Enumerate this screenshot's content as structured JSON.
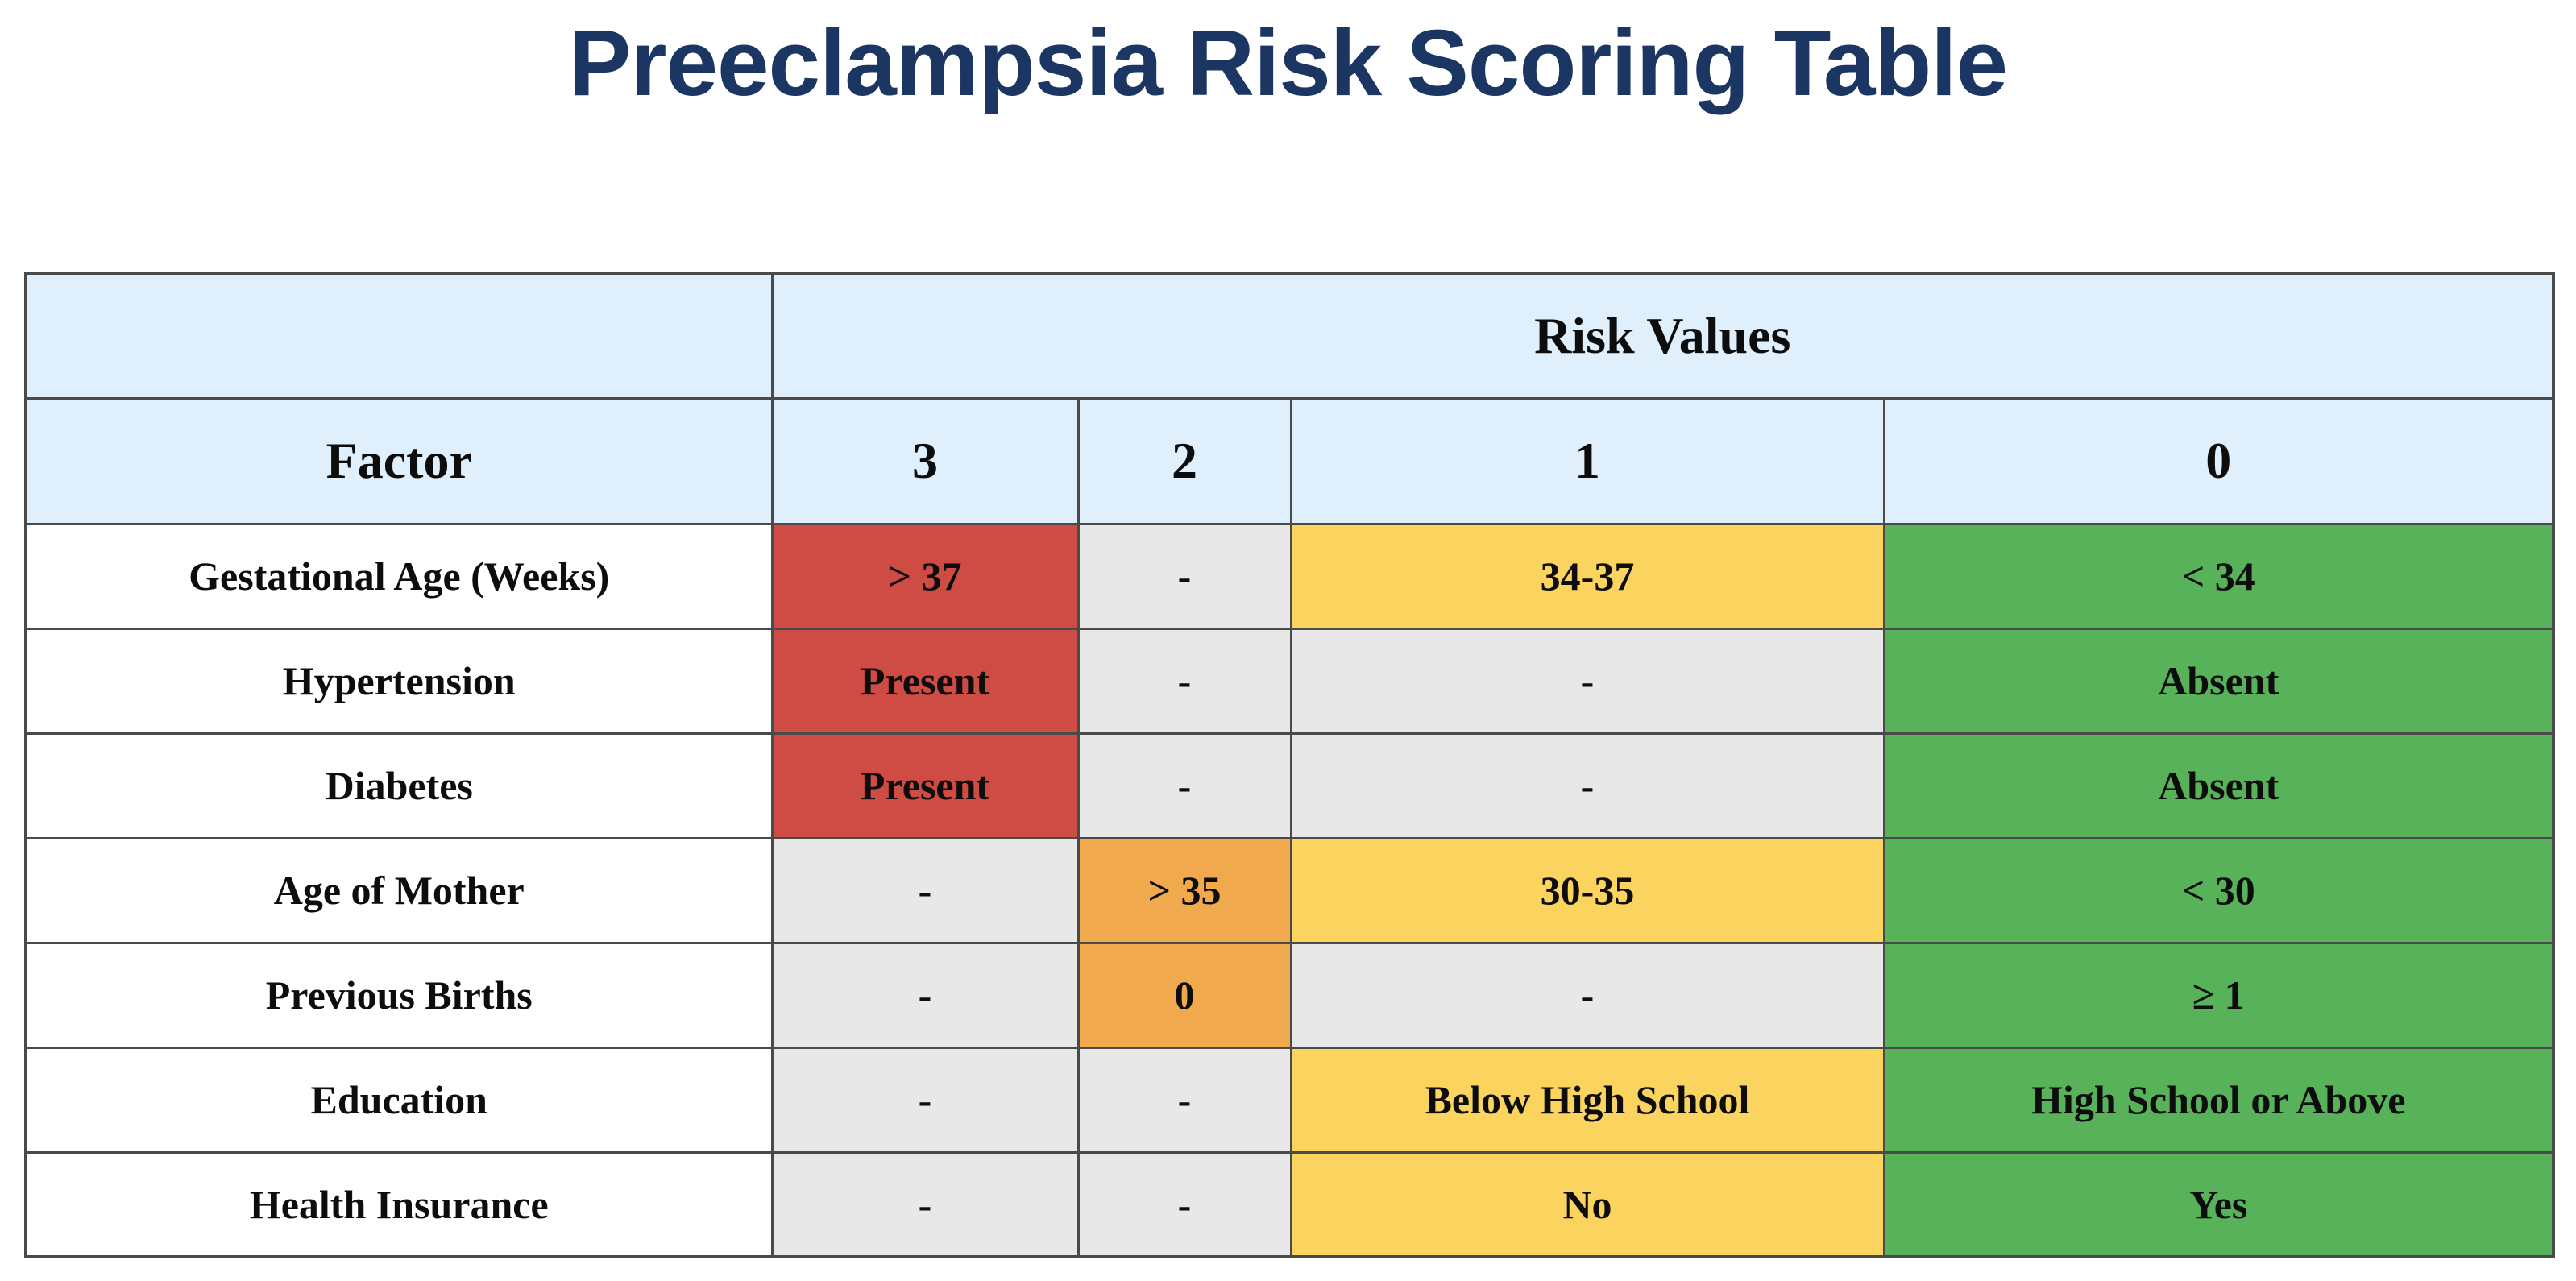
{
  "page_title": "Preeclampsia Risk Scoring Table",
  "colors": {
    "title_navy": "#1B3663",
    "header_blue": "#DFF0FC",
    "border": "#4A4A4A",
    "text": "#0D0D0D",
    "red": "#CF4C44",
    "orange": "#F0A94D",
    "yellow": "#FAD45E",
    "green": "#57B259",
    "gray": "#E8E8E8"
  },
  "table": {
    "group_header": "Risk Values",
    "factor_header": "Factor",
    "score_headers": [
      "3",
      "2",
      "1",
      "0"
    ],
    "rows": [
      {
        "factor": "Gestational Age (Weeks)",
        "cells": [
          {
            "text": "> 37",
            "color": "red"
          },
          {
            "text": "-",
            "color": "gray"
          },
          {
            "text": "34-37",
            "color": "yellow"
          },
          {
            "text": "< 34",
            "color": "green"
          }
        ]
      },
      {
        "factor": "Hypertension",
        "cells": [
          {
            "text": "Present",
            "color": "red"
          },
          {
            "text": "-",
            "color": "gray"
          },
          {
            "text": "-",
            "color": "gray"
          },
          {
            "text": "Absent",
            "color": "green"
          }
        ]
      },
      {
        "factor": "Diabetes",
        "cells": [
          {
            "text": "Present",
            "color": "red"
          },
          {
            "text": "-",
            "color": "gray"
          },
          {
            "text": "-",
            "color": "gray"
          },
          {
            "text": "Absent",
            "color": "green"
          }
        ]
      },
      {
        "factor": "Age of Mother",
        "cells": [
          {
            "text": "-",
            "color": "gray"
          },
          {
            "text": "> 35",
            "color": "orange"
          },
          {
            "text": "30-35",
            "color": "yellow"
          },
          {
            "text": "< 30",
            "color": "green"
          }
        ]
      },
      {
        "factor": "Previous Births",
        "cells": [
          {
            "text": "-",
            "color": "gray"
          },
          {
            "text": "0",
            "color": "orange"
          },
          {
            "text": "-",
            "color": "gray"
          },
          {
            "text": "≥ 1",
            "color": "green"
          }
        ]
      },
      {
        "factor": "Education",
        "cells": [
          {
            "text": "-",
            "color": "gray"
          },
          {
            "text": "-",
            "color": "gray"
          },
          {
            "text": "Below High School",
            "color": "yellow"
          },
          {
            "text": "High School or Above",
            "color": "green"
          }
        ]
      },
      {
        "factor": "Health Insurance",
        "cells": [
          {
            "text": "-",
            "color": "gray"
          },
          {
            "text": "-",
            "color": "gray"
          },
          {
            "text": "No",
            "color": "yellow"
          },
          {
            "text": "Yes",
            "color": "green"
          }
        ]
      }
    ]
  }
}
